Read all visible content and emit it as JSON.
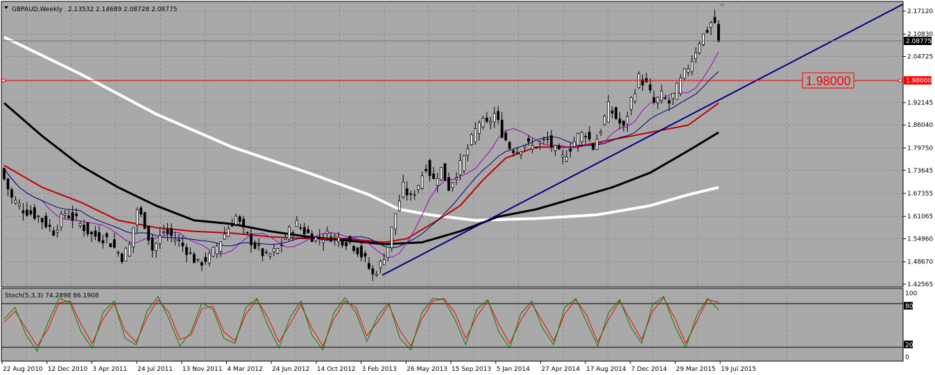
{
  "header": {
    "symbol": "GBPAUD,Weekly",
    "ohlc": "2.13532 2.14689 2.08728 2.08775"
  },
  "price_axis": {
    "ticks": [
      "2.17120",
      "2.10830",
      "2.04725",
      "1.98000",
      "1.92145",
      "1.86040",
      "1.79750",
      "1.73645",
      "1.67355",
      "1.61065",
      "1.54960",
      "1.48670",
      "1.42565"
    ],
    "current_price": "2.08775",
    "level_price": "1.98000"
  },
  "horizontal_level": {
    "label": "1.98000",
    "color": "#ff0000"
  },
  "stochastic": {
    "label": "Stoch(5,3,3) 74.2898 86.1908",
    "ticks": [
      "100",
      "80",
      "20",
      "0"
    ],
    "colors": {
      "main": "#008000",
      "signal": "#ff0000"
    }
  },
  "time_axis": {
    "labels": [
      "22 Aug 2010",
      "12 Dec 2010",
      "3 Apr 2011",
      "24 Jul 2011",
      "13 Nov 2011",
      "4 Mar 2012",
      "24 Jun 2012",
      "14 Oct 2012",
      "3 Feb 2013",
      "26 May 2013",
      "15 Sep 2013",
      "5 Jan 2014",
      "27 Apr 2014",
      "17 Aug 2014",
      "7 Dec 2014",
      "29 Mar 2015",
      "19 Jul 2015"
    ]
  },
  "colors": {
    "background": "#a9a9a9",
    "grid": "#8a8a8a",
    "trendline": "#00008b",
    "ma_white": "#ffffff",
    "ma_black": "#000000",
    "ma_red": "#c00000",
    "ma_purple": "#a000c0",
    "ma_navy": "#000080"
  },
  "chart_data": [
    {
      "type": "candlestick",
      "title": "GBPAUD,Weekly",
      "x_labels": [
        "22 Aug 2010",
        "12 Dec 2010",
        "3 Apr 2011",
        "24 Jul 2011",
        "13 Nov 2011",
        "4 Mar 2012",
        "24 Jun 2012",
        "14 Oct 2012",
        "3 Feb 2013",
        "26 May 2013",
        "15 Sep 2013",
        "5 Jan 2014",
        "27 Apr 2014",
        "17 Aug 2014",
        "7 Dec 2014",
        "29 Mar 2015",
        "19 Jul 2015"
      ],
      "ylim": [
        1.42565,
        2.1712
      ],
      "close_path": [
        [
          0,
          1.74
        ],
        [
          3,
          1.66
        ],
        [
          6,
          1.63
        ],
        [
          10,
          1.61
        ],
        [
          14,
          1.57
        ],
        [
          17,
          1.62
        ],
        [
          20,
          1.6
        ],
        [
          24,
          1.56
        ],
        [
          28,
          1.55
        ],
        [
          32,
          1.5
        ],
        [
          34,
          1.53
        ],
        [
          36,
          1.63
        ],
        [
          38,
          1.59
        ],
        [
          40,
          1.52
        ],
        [
          43,
          1.57
        ],
        [
          46,
          1.55
        ],
        [
          49,
          1.52
        ],
        [
          52,
          1.48
        ],
        [
          55,
          1.5
        ],
        [
          57,
          1.53
        ],
        [
          60,
          1.58
        ],
        [
          62,
          1.61
        ],
        [
          64,
          1.57
        ],
        [
          67,
          1.53
        ],
        [
          70,
          1.5
        ],
        [
          73,
          1.52
        ],
        [
          76,
          1.57
        ],
        [
          78,
          1.59
        ],
        [
          80,
          1.57
        ],
        [
          83,
          1.55
        ],
        [
          86,
          1.56
        ],
        [
          89,
          1.55
        ],
        [
          92,
          1.54
        ],
        [
          94,
          1.52
        ],
        [
          96,
          1.49
        ],
        [
          98,
          1.45
        ],
        [
          100,
          1.48
        ],
        [
          102,
          1.53
        ],
        [
          104,
          1.62
        ],
        [
          106,
          1.69
        ],
        [
          108,
          1.66
        ],
        [
          110,
          1.7
        ],
        [
          112,
          1.75
        ],
        [
          114,
          1.71
        ],
        [
          116,
          1.74
        ],
        [
          118,
          1.69
        ],
        [
          120,
          1.73
        ],
        [
          122,
          1.77
        ],
        [
          124,
          1.82
        ],
        [
          126,
          1.87
        ],
        [
          128,
          1.86
        ],
        [
          130,
          1.89
        ],
        [
          132,
          1.84
        ],
        [
          134,
          1.8
        ],
        [
          136,
          1.79
        ],
        [
          138,
          1.81
        ],
        [
          140,
          1.8
        ],
        [
          142,
          1.81
        ],
        [
          144,
          1.82
        ],
        [
          146,
          1.79
        ],
        [
          148,
          1.77
        ],
        [
          150,
          1.8
        ],
        [
          152,
          1.83
        ],
        [
          154,
          1.84
        ],
        [
          156,
          1.8
        ],
        [
          158,
          1.85
        ],
        [
          160,
          1.91
        ],
        [
          162,
          1.88
        ],
        [
          164,
          1.85
        ],
        [
          166,
          1.93
        ],
        [
          168,
          1.99
        ],
        [
          170,
          1.97
        ],
        [
          172,
          1.92
        ],
        [
          174,
          1.94
        ],
        [
          176,
          1.92
        ],
        [
          178,
          1.96
        ],
        [
          180,
          2.0
        ],
        [
          182,
          2.04
        ],
        [
          184,
          2.09
        ],
        [
          186,
          2.12
        ],
        [
          187,
          2.14
        ]
      ],
      "last_candle": {
        "open": 2.13532,
        "high": 2.14689,
        "low": 2.08728,
        "close": 2.08775
      },
      "horizontal_level": 1.98,
      "trendline": {
        "start": [
          104,
          1.45
        ],
        "end": [
          234,
          2.17
        ]
      },
      "moving_averages": [
        {
          "color": "white",
          "points": [
            [
              0,
              2.1
            ],
            [
              20,
              2.0
            ],
            [
              40,
              1.89
            ],
            [
              60,
              1.8
            ],
            [
              80,
              1.73
            ],
            [
              96,
              1.67
            ],
            [
              104,
              1.63
            ],
            [
              112,
              1.615
            ],
            [
              124,
              1.6
            ],
            [
              140,
              1.605
            ],
            [
              156,
              1.615
            ],
            [
              170,
              1.64
            ],
            [
              180,
              1.67
            ],
            [
              188,
              1.69
            ]
          ]
        },
        {
          "color": "black",
          "points": [
            [
              0,
              1.92
            ],
            [
              10,
              1.83
            ],
            [
              20,
              1.75
            ],
            [
              30,
              1.69
            ],
            [
              40,
              1.64
            ],
            [
              50,
              1.6
            ],
            [
              60,
              1.59
            ],
            [
              70,
              1.57
            ],
            [
              80,
              1.555
            ],
            [
              90,
              1.545
            ],
            [
              100,
              1.535
            ],
            [
              110,
              1.54
            ],
            [
              120,
              1.57
            ],
            [
              130,
              1.61
            ],
            [
              140,
              1.63
            ],
            [
              150,
              1.66
            ],
            [
              160,
              1.69
            ],
            [
              170,
              1.73
            ],
            [
              180,
              1.79
            ],
            [
              188,
              1.84
            ]
          ]
        },
        {
          "color": "red",
          "points": [
            [
              0,
              1.75
            ],
            [
              10,
              1.69
            ],
            [
              20,
              1.65
            ],
            [
              30,
              1.6
            ],
            [
              40,
              1.58
            ],
            [
              50,
              1.57
            ],
            [
              60,
              1.565
            ],
            [
              70,
              1.555
            ],
            [
              80,
              1.55
            ],
            [
              90,
              1.55
            ],
            [
              100,
              1.54
            ],
            [
              106,
              1.55
            ],
            [
              114,
              1.6
            ],
            [
              120,
              1.64
            ],
            [
              126,
              1.71
            ],
            [
              132,
              1.77
            ],
            [
              140,
              1.8
            ],
            [
              150,
              1.8
            ],
            [
              160,
              1.82
            ],
            [
              170,
              1.84
            ],
            [
              180,
              1.86
            ],
            [
              188,
              1.92
            ]
          ]
        }
      ]
    },
    {
      "type": "line",
      "title": "Stoch(5,3,3) 74.2898 86.1908",
      "ylim": [
        0,
        100
      ],
      "reference_lines": [
        80,
        20
      ],
      "series": [
        {
          "name": "main",
          "values": [
            60,
            78,
            35,
            10,
            55,
            92,
            85,
            40,
            15,
            70,
            88,
            30,
            20,
            72,
            95,
            60,
            18,
            40,
            85,
            75,
            30,
            22,
            78,
            92,
            50,
            15,
            62,
            88,
            35,
            12,
            70,
            93,
            70,
            25,
            65,
            85,
            30,
            12,
            70,
            92,
            90,
            60,
            20,
            75,
            90,
            40,
            15,
            68,
            88,
            45,
            20,
            78,
            92,
            55,
            18,
            70,
            90,
            48,
            22,
            82,
            95,
            50,
            15,
            65,
            92,
            74
          ]
        },
        {
          "name": "signal",
          "values": [
            55,
            72,
            45,
            18,
            45,
            85,
            88,
            52,
            22,
            60,
            84,
            42,
            24,
            62,
            90,
            70,
            28,
            35,
            76,
            80,
            40,
            26,
            68,
            90,
            62,
            24,
            52,
            82,
            46,
            18,
            60,
            88,
            78,
            34,
            56,
            82,
            42,
            18,
            60,
            88,
            92,
            70,
            30,
            64,
            88,
            52,
            22,
            58,
            84,
            56,
            26,
            68,
            90,
            66,
            24,
            60,
            88,
            58,
            28,
            72,
            93,
            62,
            22,
            56,
            90,
            86
          ]
        }
      ],
      "current": {
        "main": 74.2898,
        "signal": 86.1908
      }
    }
  ]
}
